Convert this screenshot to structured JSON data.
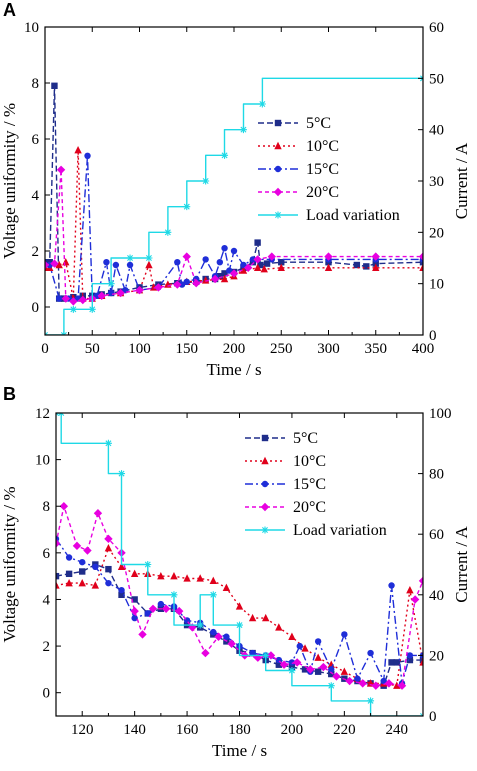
{
  "chart_data": [
    {
      "panel": "A",
      "type": "line",
      "xlabel": "Time / s",
      "ylabel": "Voltage uniformity / %",
      "y2label": "Current / A",
      "xlim": [
        0,
        400
      ],
      "ylim": [
        -1,
        10
      ],
      "y2lim": [
        0,
        60
      ],
      "xticks": [
        0,
        50,
        100,
        150,
        200,
        250,
        300,
        350,
        400
      ],
      "yticks": [
        0,
        2,
        4,
        6,
        8,
        10
      ],
      "y2ticks": [
        0,
        10,
        20,
        30,
        40,
        50,
        60
      ],
      "legend": "middle-right",
      "series": [
        {
          "name": "5°C",
          "axis": "left",
          "color": "#1f2d8a",
          "dash": "6,3",
          "marker": "square",
          "x": [
            0,
            5,
            10,
            15,
            20,
            30,
            40,
            50,
            60,
            70,
            80,
            100,
            120,
            140,
            160,
            170,
            180,
            185,
            190,
            200,
            210,
            220,
            225,
            228,
            235,
            250,
            300,
            330,
            340,
            350,
            400
          ],
          "y": [
            1.6,
            1.6,
            7.9,
            0.3,
            0.3,
            0.35,
            0.4,
            0.4,
            0.45,
            0.5,
            0.55,
            0.7,
            0.8,
            0.85,
            0.9,
            1.0,
            1.0,
            1.1,
            1.2,
            1.25,
            1.4,
            1.6,
            2.3,
            1.5,
            1.55,
            1.6,
            1.6,
            1.5,
            1.45,
            1.55,
            1.6
          ]
        },
        {
          "name": "10°C",
          "axis": "left",
          "color": "#e0001b",
          "dash": "2,3",
          "marker": "triangle",
          "x": [
            0,
            5,
            15,
            22,
            30,
            35,
            40,
            50,
            60,
            80,
            100,
            110,
            115,
            130,
            150,
            170,
            190,
            200,
            210,
            225,
            232,
            250,
            300,
            350,
            400
          ],
          "y": [
            1.4,
            1.4,
            1.5,
            1.6,
            0.3,
            5.6,
            0.3,
            0.3,
            0.4,
            0.5,
            0.6,
            1.5,
            0.7,
            0.8,
            0.9,
            0.95,
            1.0,
            1.1,
            1.3,
            1.4,
            1.35,
            1.4,
            1.4,
            1.4,
            1.4
          ]
        },
        {
          "name": "15°C",
          "axis": "left",
          "color": "#1f2ed8",
          "dash": "8,3,2,3",
          "marker": "circle",
          "x": [
            0,
            5,
            15,
            25,
            35,
            45,
            50,
            55,
            65,
            70,
            75,
            85,
            90,
            100,
            120,
            140,
            145,
            150,
            160,
            170,
            180,
            185,
            190,
            195,
            200,
            210,
            220,
            240,
            300,
            350,
            400
          ],
          "y": [
            1.5,
            1.5,
            0.3,
            0.3,
            0.3,
            5.4,
            0.3,
            0.4,
            1.6,
            0.5,
            1.5,
            0.6,
            1.5,
            0.6,
            0.7,
            1.6,
            0.8,
            0.9,
            1.0,
            1.7,
            1.1,
            1.6,
            2.1,
            1.3,
            2.0,
            1.5,
            1.7,
            1.7,
            1.7,
            1.7,
            1.7
          ]
        },
        {
          "name": "20°C",
          "axis": "left",
          "color": "#e800e0",
          "dash": "4,3",
          "marker": "diamond",
          "x": [
            0,
            10,
            17,
            22,
            30,
            40,
            50,
            60,
            80,
            100,
            120,
            140,
            150,
            160,
            180,
            200,
            215,
            225,
            240,
            300,
            350,
            400
          ],
          "y": [
            1.5,
            1.55,
            4.9,
            0.3,
            0.2,
            0.25,
            0.3,
            0.4,
            0.5,
            0.6,
            0.7,
            0.8,
            1.8,
            0.85,
            1.0,
            1.2,
            1.4,
            1.7,
            1.8,
            1.8,
            1.8,
            1.8
          ]
        },
        {
          "name": "Load variation",
          "axis": "right",
          "color": "#1ed9e6",
          "dash": "",
          "marker": "star",
          "step": true,
          "x": [
            0,
            20,
            20,
            30,
            30,
            50,
            50,
            70,
            70,
            90,
            90,
            110,
            110,
            130,
            130,
            150,
            150,
            170,
            170,
            190,
            190,
            210,
            210,
            230,
            230,
            400
          ],
          "y": [
            0,
            0,
            5,
            5,
            5,
            5,
            10,
            10,
            15,
            15,
            15,
            15,
            20,
            20,
            25,
            25,
            30,
            30,
            35,
            35,
            40,
            40,
            45,
            45,
            50,
            50
          ]
        }
      ]
    },
    {
      "panel": "B",
      "type": "line",
      "xlabel": "Time / s",
      "ylabel": "Voltage uniformity / %",
      "y2label": "Current / A",
      "xlim": [
        110,
        250
      ],
      "ylim": [
        -1,
        12
      ],
      "y2lim": [
        0,
        100
      ],
      "xticks": [
        120,
        140,
        160,
        180,
        200,
        220,
        240
      ],
      "yticks": [
        0,
        2,
        4,
        6,
        8,
        10,
        12
      ],
      "y2ticks": [
        0,
        20,
        40,
        60,
        80,
        100
      ],
      "legend": "top-right",
      "series": [
        {
          "name": "5°C",
          "axis": "left",
          "color": "#1f2d8a",
          "dash": "6,3",
          "marker": "square",
          "x": [
            110,
            115,
            120,
            125,
            130,
            135,
            140,
            145,
            150,
            155,
            160,
            165,
            170,
            175,
            180,
            185,
            190,
            195,
            200,
            205,
            210,
            215,
            220,
            225,
            230,
            235,
            238,
            240,
            245,
            250
          ],
          "y": [
            5.0,
            5.1,
            5.2,
            5.5,
            5.3,
            4.2,
            4.0,
            3.4,
            3.6,
            3.6,
            2.9,
            2.8,
            2.5,
            2.2,
            1.8,
            1.7,
            1.4,
            1.2,
            1.1,
            1.0,
            0.9,
            0.8,
            0.6,
            0.5,
            0.4,
            0.3,
            1.3,
            1.3,
            1.4,
            1.4
          ]
        },
        {
          "name": "10°C",
          "axis": "left",
          "color": "#e0001b",
          "dash": "2,3",
          "marker": "triangle",
          "x": [
            110,
            115,
            120,
            125,
            130,
            135,
            140,
            145,
            150,
            155,
            160,
            165,
            170,
            175,
            180,
            185,
            190,
            195,
            200,
            205,
            210,
            215,
            220,
            225,
            230,
            235,
            240,
            245,
            250
          ],
          "y": [
            4.6,
            4.7,
            4.7,
            4.6,
            6.2,
            5.4,
            5.1,
            5.1,
            5.0,
            5.0,
            4.9,
            4.9,
            4.8,
            4.5,
            3.7,
            3.2,
            3.2,
            2.8,
            2.4,
            1.9,
            1.5,
            1.2,
            0.9,
            0.6,
            0.4,
            0.4,
            0.3,
            4.4,
            1.3
          ]
        },
        {
          "name": "15°C",
          "axis": "left",
          "color": "#1f2ed8",
          "dash": "8,3,2,3",
          "marker": "circle",
          "x": [
            110,
            115,
            120,
            125,
            130,
            135,
            140,
            145,
            150,
            155,
            160,
            165,
            170,
            175,
            180,
            185,
            190,
            195,
            200,
            203,
            207,
            210,
            215,
            220,
            225,
            230,
            235,
            238,
            242,
            245,
            250
          ],
          "y": [
            6.6,
            5.8,
            5.6,
            5.4,
            4.7,
            4.4,
            3.2,
            3.4,
            3.8,
            3.7,
            3.1,
            3.0,
            2.6,
            2.4,
            2.0,
            1.7,
            1.6,
            1.4,
            1.3,
            2.0,
            0.9,
            2.2,
            1.0,
            2.5,
            0.6,
            1.7,
            0.5,
            4.6,
            0.4,
            1.6,
            1.6
          ]
        },
        {
          "name": "20°C",
          "axis": "left",
          "color": "#e800e0",
          "dash": "4,3",
          "marker": "diamond",
          "x": [
            110,
            113,
            118,
            122,
            126,
            130,
            135,
            140,
            143,
            147,
            152,
            157,
            162,
            167,
            172,
            177,
            182,
            187,
            192,
            197,
            202,
            207,
            212,
            217,
            222,
            227,
            232,
            237,
            242,
            247,
            250
          ],
          "y": [
            6.4,
            8.0,
            6.3,
            6.1,
            7.7,
            6.6,
            6.0,
            3.5,
            2.5,
            3.6,
            3.6,
            3.5,
            2.8,
            1.7,
            2.4,
            2.1,
            1.6,
            1.5,
            1.6,
            1.2,
            1.3,
            1.0,
            1.1,
            0.7,
            0.5,
            0.4,
            0.3,
            0.4,
            0.3,
            4.0,
            4.8
          ]
        },
        {
          "name": "Load variation",
          "axis": "right",
          "color": "#1ed9e6",
          "dash": "",
          "marker": "star",
          "step": true,
          "x": [
            110,
            112,
            112,
            130,
            130,
            135,
            135,
            145,
            145,
            155,
            155,
            165,
            165,
            170,
            170,
            180,
            180,
            190,
            190,
            200,
            200,
            215,
            215,
            230,
            230,
            250
          ],
          "y": [
            100,
            100,
            90,
            90,
            80,
            80,
            50,
            50,
            40,
            40,
            30,
            30,
            40,
            40,
            30,
            30,
            20,
            20,
            15,
            15,
            10,
            10,
            5,
            5,
            0,
            0
          ]
        }
      ]
    }
  ]
}
